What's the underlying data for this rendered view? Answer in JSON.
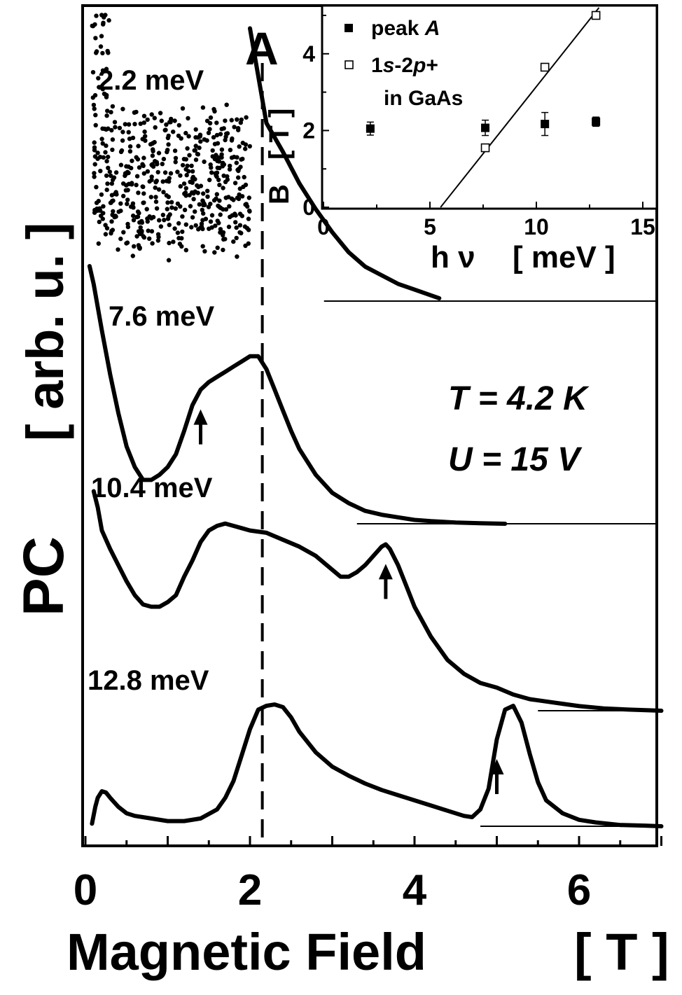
{
  "chart_data": [
    {
      "type": "line",
      "xlabel": "Magnetic Field",
      "xunit": "[ T ]",
      "ylabel": "PC",
      "yunit": "[ arb. u. ]",
      "xlim": [
        0,
        7
      ],
      "xticks": [
        "0",
        "2",
        "4",
        "6"
      ],
      "panel_label": "A",
      "conditions": [
        "T = 4.2 K",
        "U = 15 V"
      ],
      "dashed_line_x": 2.15,
      "series": [
        {
          "name": "2.2 meV",
          "x": [
            2.0,
            2.2,
            2.4,
            2.6,
            2.8,
            3.0,
            3.2,
            3.4,
            3.6,
            3.8,
            4.0,
            4.2,
            4.3
          ],
          "y": [
            0.95,
            0.62,
            0.52,
            0.41,
            0.32,
            0.24,
            0.17,
            0.12,
            0.09,
            0.06,
            0.04,
            0.02,
            0.01
          ],
          "noisy_region_x": [
            0.1,
            2.0
          ],
          "baseline_from_x": 2.9,
          "arrows_x": []
        },
        {
          "name": "7.6 meV",
          "x": [
            0.05,
            0.1,
            0.2,
            0.3,
            0.4,
            0.5,
            0.6,
            0.7,
            0.8,
            0.9,
            1.0,
            1.1,
            1.2,
            1.3,
            1.4,
            1.5,
            1.6,
            1.7,
            1.8,
            1.9,
            2.0,
            2.1,
            2.2,
            2.3,
            2.4,
            2.5,
            2.6,
            2.8,
            3.0,
            3.2,
            3.4,
            3.6,
            3.8,
            4.0,
            4.2,
            4.5,
            4.8,
            5.1
          ],
          "y": [
            1.0,
            0.93,
            0.75,
            0.58,
            0.43,
            0.3,
            0.22,
            0.17,
            0.17,
            0.19,
            0.22,
            0.27,
            0.36,
            0.46,
            0.52,
            0.55,
            0.57,
            0.59,
            0.61,
            0.63,
            0.65,
            0.65,
            0.6,
            0.52,
            0.44,
            0.36,
            0.29,
            0.19,
            0.12,
            0.08,
            0.05,
            0.035,
            0.025,
            0.015,
            0.01,
            0.005,
            0.002,
            0.0
          ],
          "baseline_from_x": 3.3,
          "arrows_x": [
            1.4
          ]
        },
        {
          "name": "10.4 meV",
          "x": [
            0.1,
            0.15,
            0.2,
            0.3,
            0.4,
            0.5,
            0.6,
            0.7,
            0.8,
            0.9,
            1.0,
            1.1,
            1.2,
            1.3,
            1.4,
            1.5,
            1.6,
            1.7,
            1.8,
            1.9,
            2.0,
            2.2,
            2.4,
            2.6,
            2.8,
            3.0,
            3.1,
            3.2,
            3.3,
            3.4,
            3.5,
            3.6,
            3.65,
            3.7,
            3.8,
            3.9,
            4.0,
            4.2,
            4.4,
            4.6,
            4.8,
            5.0,
            5.2,
            5.4,
            5.6,
            5.8,
            6.0,
            6.3,
            6.6,
            7.0
          ],
          "y": [
            0.95,
            0.88,
            0.78,
            0.7,
            0.63,
            0.56,
            0.5,
            0.46,
            0.45,
            0.45,
            0.47,
            0.5,
            0.58,
            0.65,
            0.73,
            0.78,
            0.8,
            0.81,
            0.8,
            0.79,
            0.78,
            0.77,
            0.74,
            0.71,
            0.67,
            0.61,
            0.58,
            0.58,
            0.6,
            0.63,
            0.67,
            0.71,
            0.72,
            0.7,
            0.63,
            0.54,
            0.45,
            0.32,
            0.22,
            0.16,
            0.12,
            0.1,
            0.07,
            0.05,
            0.04,
            0.03,
            0.02,
            0.01,
            0.005,
            0.0
          ],
          "baseline_from_x": 5.5,
          "arrows_x": [
            3.65
          ]
        },
        {
          "name": "12.8 meV",
          "x": [
            0.08,
            0.12,
            0.15,
            0.2,
            0.25,
            0.3,
            0.4,
            0.5,
            0.6,
            0.8,
            1.0,
            1.2,
            1.4,
            1.6,
            1.7,
            1.8,
            1.9,
            2.0,
            2.1,
            2.2,
            2.3,
            2.4,
            2.5,
            2.6,
            2.8,
            3.0,
            3.2,
            3.4,
            3.6,
            3.8,
            4.0,
            4.2,
            4.4,
            4.6,
            4.7,
            4.8,
            4.9,
            5.0,
            5.1,
            5.2,
            5.3,
            5.4,
            5.5,
            5.6,
            5.8,
            6.0,
            6.2,
            6.5,
            6.8,
            7.0
          ],
          "y": [
            0.02,
            0.15,
            0.22,
            0.27,
            0.26,
            0.22,
            0.15,
            0.1,
            0.08,
            0.06,
            0.04,
            0.04,
            0.06,
            0.13,
            0.22,
            0.35,
            0.55,
            0.75,
            0.9,
            0.93,
            0.94,
            0.92,
            0.84,
            0.73,
            0.57,
            0.46,
            0.39,
            0.33,
            0.28,
            0.24,
            0.2,
            0.16,
            0.12,
            0.08,
            0.07,
            0.13,
            0.29,
            0.67,
            0.9,
            0.93,
            0.8,
            0.56,
            0.34,
            0.2,
            0.1,
            0.05,
            0.03,
            0.01,
            0.005,
            0.0
          ],
          "baseline_from_x": 4.8,
          "arrows_x": [
            5.0
          ]
        }
      ]
    },
    {
      "type": "scatter",
      "xlabel": "h ν",
      "xunit": "[ meV ]",
      "ylabel": "B",
      "yunit": "[ T ]",
      "xlim": [
        0,
        16
      ],
      "ylim": [
        0,
        5.2
      ],
      "xticks": [
        "0",
        "5",
        "10",
        "15"
      ],
      "yticks": [
        "0",
        "2",
        "4"
      ],
      "series": [
        {
          "name": "peak A",
          "name_parts": [
            "peak ",
            "A"
          ],
          "marker": "filled-square",
          "x": [
            2.2,
            7.6,
            10.4,
            12.8
          ],
          "y": [
            2.05,
            2.07,
            2.17,
            2.23
          ],
          "err": [
            0.17,
            0.2,
            0.3,
            0.12
          ]
        },
        {
          "name": "1s-2p+ in GaAs",
          "name_parts": [
            "1",
            "s",
            "-2",
            "p",
            "+"
          ],
          "name_line2": "in GaAs",
          "marker": "open-square",
          "x": [
            7.6,
            10.4,
            12.8
          ],
          "y": [
            1.55,
            3.65,
            5.0
          ]
        }
      ],
      "fit_line": {
        "x": [
          5.5,
          13.8
        ],
        "y": [
          0.0,
          5.8
        ]
      }
    }
  ]
}
